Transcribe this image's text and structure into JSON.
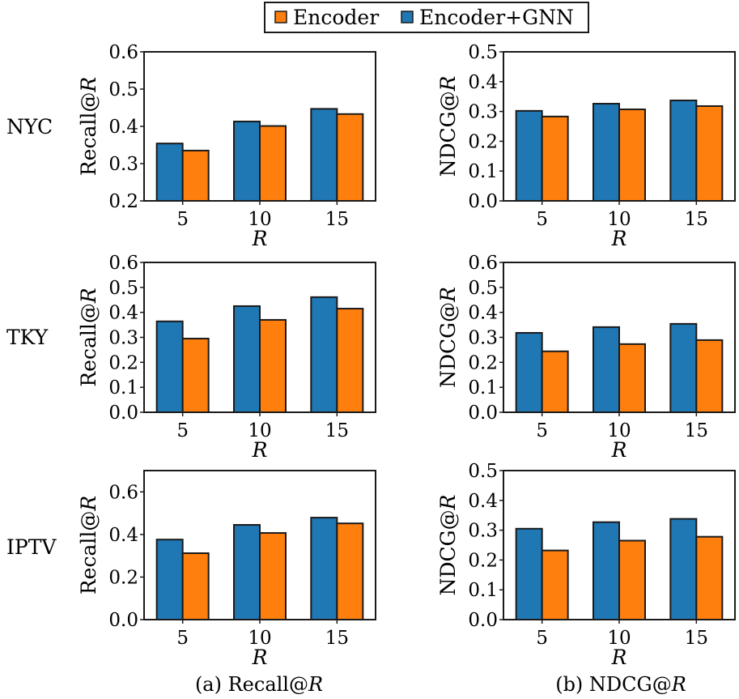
{
  "legend": {
    "placement": "top-center",
    "entries": [
      {
        "name": "Encoder",
        "color": "#ff7f0e"
      },
      {
        "name": "Encoder+GNN",
        "color": "#1f77b4"
      }
    ]
  },
  "row_labels": [
    "NYC",
    "TKY",
    "IPTV"
  ],
  "column_captions": [
    {
      "prefix": "(a) Recall@",
      "italic": "R"
    },
    {
      "prefix": "(b) NDCG@",
      "italic": "R"
    }
  ],
  "chart_data": [
    {
      "type": "bar",
      "dataset": "NYC",
      "metric": "Recall",
      "ylabel_prefix": "Recall@",
      "ylabel_italic": "R",
      "xlabel": "R",
      "categories": [
        "5",
        "10",
        "15"
      ],
      "ylim": [
        0.2,
        0.6
      ],
      "yticks": [
        0.2,
        0.3,
        0.4,
        0.5,
        0.6
      ],
      "ytick_labels": [
        "0.2",
        "0.3",
        "0.4",
        "0.5",
        "0.6"
      ],
      "series": [
        {
          "name": "Encoder+GNN",
          "color": "#1f77b4",
          "values": [
            0.354,
            0.413,
            0.447
          ]
        },
        {
          "name": "Encoder",
          "color": "#ff7f0e",
          "values": [
            0.335,
            0.401,
            0.433
          ]
        }
      ]
    },
    {
      "type": "bar",
      "dataset": "NYC",
      "metric": "NDCG",
      "ylabel_prefix": "NDCG@",
      "ylabel_italic": "R",
      "xlabel": "R",
      "categories": [
        "5",
        "10",
        "15"
      ],
      "ylim": [
        0.0,
        0.5
      ],
      "yticks": [
        0.0,
        0.1,
        0.2,
        0.3,
        0.4,
        0.5
      ],
      "ytick_labels": [
        "0.0",
        "0.1",
        "0.2",
        "0.3",
        "0.4",
        "0.5"
      ],
      "series": [
        {
          "name": "Encoder+GNN",
          "color": "#1f77b4",
          "values": [
            0.302,
            0.326,
            0.337
          ]
        },
        {
          "name": "Encoder",
          "color": "#ff7f0e",
          "values": [
            0.283,
            0.307,
            0.318
          ]
        }
      ]
    },
    {
      "type": "bar",
      "dataset": "TKY",
      "metric": "Recall",
      "ylabel_prefix": "Recall@",
      "ylabel_italic": "R",
      "xlabel": "R",
      "categories": [
        "5",
        "10",
        "15"
      ],
      "ylim": [
        0.0,
        0.6
      ],
      "yticks": [
        0.0,
        0.1,
        0.2,
        0.3,
        0.4,
        0.5,
        0.6
      ],
      "ytick_labels": [
        "0.0",
        "0.1",
        "0.2",
        "0.3",
        "0.4",
        "0.5",
        "0.6"
      ],
      "series": [
        {
          "name": "Encoder+GNN",
          "color": "#1f77b4",
          "values": [
            0.364,
            0.425,
            0.461
          ]
        },
        {
          "name": "Encoder",
          "color": "#ff7f0e",
          "values": [
            0.295,
            0.37,
            0.415
          ]
        }
      ]
    },
    {
      "type": "bar",
      "dataset": "TKY",
      "metric": "NDCG",
      "ylabel_prefix": "NDCG@",
      "ylabel_italic": "R",
      "xlabel": "R",
      "categories": [
        "5",
        "10",
        "15"
      ],
      "ylim": [
        0.0,
        0.6
      ],
      "yticks": [
        0.0,
        0.1,
        0.2,
        0.3,
        0.4,
        0.5,
        0.6
      ],
      "ytick_labels": [
        "0.0",
        "0.1",
        "0.2",
        "0.3",
        "0.4",
        "0.5",
        "0.6"
      ],
      "series": [
        {
          "name": "Encoder+GNN",
          "color": "#1f77b4",
          "values": [
            0.318,
            0.341,
            0.354
          ]
        },
        {
          "name": "Encoder",
          "color": "#ff7f0e",
          "values": [
            0.244,
            0.273,
            0.289
          ]
        }
      ]
    },
    {
      "type": "bar",
      "dataset": "IPTV",
      "metric": "Recall",
      "ylabel_prefix": "Recall@",
      "ylabel_italic": "R",
      "xlabel": "R",
      "categories": [
        "5",
        "10",
        "15"
      ],
      "ylim": [
        0.0,
        0.7
      ],
      "yticks": [
        0.0,
        0.2,
        0.4,
        0.6
      ],
      "ytick_labels": [
        "0.0",
        "0.2",
        "0.4",
        "0.6"
      ],
      "series": [
        {
          "name": "Encoder+GNN",
          "color": "#1f77b4",
          "values": [
            0.376,
            0.445,
            0.479
          ]
        },
        {
          "name": "Encoder",
          "color": "#ff7f0e",
          "values": [
            0.312,
            0.407,
            0.452
          ]
        }
      ]
    },
    {
      "type": "bar",
      "dataset": "IPTV",
      "metric": "NDCG",
      "ylabel_prefix": "NDCG@",
      "ylabel_italic": "R",
      "xlabel": "R",
      "categories": [
        "5",
        "10",
        "15"
      ],
      "ylim": [
        0.0,
        0.5
      ],
      "yticks": [
        0.0,
        0.1,
        0.2,
        0.3,
        0.4,
        0.5
      ],
      "ytick_labels": [
        "0.0",
        "0.1",
        "0.2",
        "0.3",
        "0.4",
        "0.5"
      ],
      "series": [
        {
          "name": "Encoder+GNN",
          "color": "#1f77b4",
          "values": [
            0.305,
            0.327,
            0.338
          ]
        },
        {
          "name": "Encoder",
          "color": "#ff7f0e",
          "values": [
            0.232,
            0.265,
            0.278
          ]
        }
      ]
    }
  ]
}
